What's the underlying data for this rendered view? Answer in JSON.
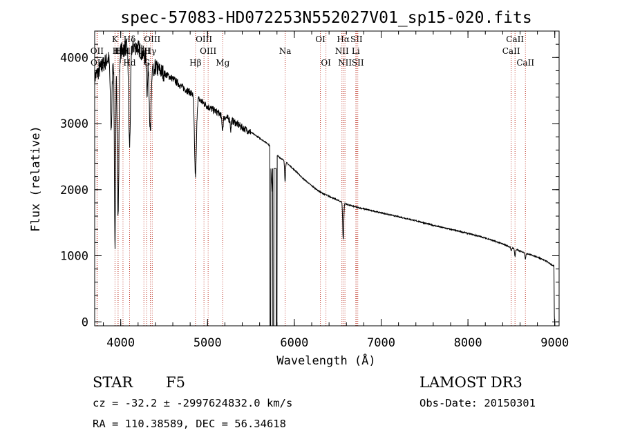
{
  "info": {
    "obj_class": "STAR",
    "subclass": "F5",
    "survey": "LAMOST DR3",
    "cz_line": "cz = -32.2 ± -2997624832.0 km/s",
    "obs_date": "Obs-Date: 20150301",
    "radec": "RA = 110.38589, DEC =  56.34618"
  },
  "chart_data": {
    "type": "line",
    "title": "spec-57083-HD072253N552027V01_sp15-020.fits",
    "xlabel": "Wavelength (Å)",
    "ylabel": "Flux (relative)",
    "xlim": [
      3700,
      9050
    ],
    "ylim": [
      -60,
      4400
    ],
    "xticks": [
      4000,
      5000,
      6000,
      7000,
      8000,
      9000
    ],
    "yticks": [
      0,
      1000,
      2000,
      3000,
      4000
    ],
    "x_minor_step": 200,
    "y_minor_step": 200,
    "line_color": "#000000",
    "marker_color": "#c0392b",
    "continuum": [
      [
        3700,
        3700
      ],
      [
        3800,
        3900
      ],
      [
        3900,
        4050
      ],
      [
        4000,
        4100
      ],
      [
        4100,
        4180
      ],
      [
        4200,
        4150
      ],
      [
        4300,
        3980
      ],
      [
        4400,
        3850
      ],
      [
        4500,
        3760
      ],
      [
        4600,
        3680
      ],
      [
        4700,
        3560
      ],
      [
        4800,
        3470
      ],
      [
        4900,
        3370
      ],
      [
        5000,
        3260
      ],
      [
        5100,
        3180
      ],
      [
        5200,
        3100
      ],
      [
        5300,
        3030
      ],
      [
        5400,
        2940
      ],
      [
        5500,
        2870
      ],
      [
        5600,
        2780
      ],
      [
        5700,
        2690
      ],
      [
        5800,
        2520
      ],
      [
        5900,
        2420
      ],
      [
        6000,
        2300
      ],
      [
        6100,
        2170
      ],
      [
        6200,
        2060
      ],
      [
        6300,
        1960
      ],
      [
        6400,
        1900
      ],
      [
        6500,
        1840
      ],
      [
        6600,
        1780
      ],
      [
        6700,
        1740
      ],
      [
        6800,
        1710
      ],
      [
        6900,
        1680
      ],
      [
        7000,
        1650
      ],
      [
        7200,
        1590
      ],
      [
        7400,
        1530
      ],
      [
        7600,
        1460
      ],
      [
        7800,
        1400
      ],
      [
        8000,
        1340
      ],
      [
        8200,
        1270
      ],
      [
        8400,
        1180
      ],
      [
        8600,
        1070
      ],
      [
        8800,
        980
      ],
      [
        8900,
        920
      ],
      [
        8980,
        850
      ]
    ],
    "absorption_lines": [
      {
        "center": 3890,
        "depth": 1100,
        "width": 10
      },
      {
        "center": 3934,
        "depth": 2900,
        "width": 7
      },
      {
        "center": 3970,
        "depth": 2500,
        "width": 9
      },
      {
        "center": 4102,
        "depth": 1500,
        "width": 10
      },
      {
        "center": 4305,
        "depth": 500,
        "width": 6
      },
      {
        "center": 4341,
        "depth": 1100,
        "width": 10
      },
      {
        "center": 4383,
        "depth": 250,
        "width": 5
      },
      {
        "center": 4861,
        "depth": 1200,
        "width": 11
      },
      {
        "center": 5172,
        "depth": 200,
        "width": 8
      },
      {
        "center": 5268,
        "depth": 150,
        "width": 5
      },
      {
        "center": 5893,
        "depth": 300,
        "width": 5
      },
      {
        "center": 6563,
        "depth": 550,
        "width": 6
      },
      {
        "center": 8498,
        "depth": 60,
        "width": 5
      },
      {
        "center": 8542,
        "depth": 110,
        "width": 5
      },
      {
        "center": 8662,
        "depth": 90,
        "width": 5
      }
    ],
    "gap": {
      "start": 5720,
      "end": 5800,
      "level": -60,
      "peak": 2520
    },
    "spectral_lines": [
      {
        "name": "Hδ",
        "wave": 4102,
        "row": 1
      },
      {
        "name": "CII",
        "wave": 4267,
        "row": 2
      },
      {
        "name": "K",
        "wave": 3934,
        "row": 1
      },
      {
        "name": "H",
        "wave": 3969,
        "row": 2
      },
      {
        "name": "HeI",
        "wave": 4026,
        "row": 2
      },
      {
        "name": "Hε",
        "wave": 3970,
        "row": 2
      },
      {
        "name": "OII",
        "wave": 3727,
        "row": 2
      },
      {
        "name": "OII",
        "wave": 3729,
        "row": 3
      },
      {
        "name": "Hd",
        "wave": 4102,
        "row": 3
      },
      {
        "name": "G",
        "wave": 4300,
        "row": 3
      },
      {
        "name": "OIII",
        "wave": 4363,
        "row": 1
      },
      {
        "name": "Hγ",
        "wave": 4341,
        "row": 2
      },
      {
        "name": "Hβ",
        "wave": 4861,
        "row": 3
      },
      {
        "name": "OIII",
        "wave": 4959,
        "row": 1
      },
      {
        "name": "OIII",
        "wave": 5007,
        "row": 2
      },
      {
        "name": "Mg",
        "wave": 5175,
        "row": 3
      },
      {
        "name": "Na",
        "wave": 5894,
        "row": 2
      },
      {
        "name": "OI",
        "wave": 6300,
        "row": 1
      },
      {
        "name": "OI",
        "wave": 6364,
        "row": 3
      },
      {
        "name": "Hα",
        "wave": 6563,
        "row": 1
      },
      {
        "name": "NII",
        "wave": 6548,
        "row": 2
      },
      {
        "name": "NII",
        "wave": 6583,
        "row": 3
      },
      {
        "name": "SII",
        "wave": 6716,
        "row": 1
      },
      {
        "name": "Li",
        "wave": 6708,
        "row": 2
      },
      {
        "name": "SII",
        "wave": 6731,
        "row": 3
      },
      {
        "name": "CaII",
        "wave": 8542,
        "row": 1
      },
      {
        "name": "CaII",
        "wave": 8498,
        "row": 2
      },
      {
        "name": "CaII",
        "wave": 8662,
        "row": 3
      }
    ]
  }
}
